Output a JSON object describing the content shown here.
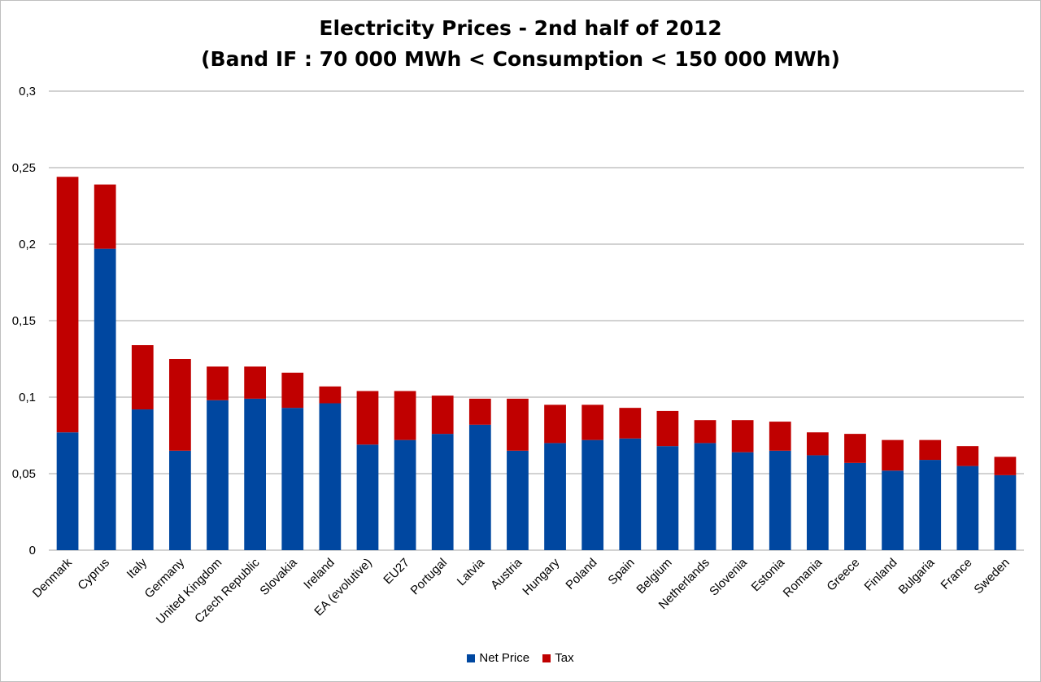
{
  "chart_data": {
    "type": "bar",
    "stacked": true,
    "title_line1": "Electricity Prices - 2nd half of 2012",
    "title_line2": "(Band IF : 70 000 MWh < Consumption < 150 000 MWh)",
    "ylim": [
      0,
      0.3
    ],
    "yticks": [
      "0",
      "0,05",
      "0,1",
      "0,15",
      "0,2",
      "0,25",
      "0,3"
    ],
    "ytick_values": [
      0,
      0.05,
      0.1,
      0.15,
      0.2,
      0.25,
      0.3
    ],
    "grid": true,
    "legend_position": "bottom",
    "categories": [
      "Denmark",
      "Cyprus",
      "Italy",
      "Germany",
      "United Kingdom",
      "Czech Republic",
      "Slovakia",
      "Ireland",
      "EA (evolutive)",
      "EU27",
      "Portugal",
      "Latvia",
      "Austria",
      "Hungary",
      "Poland",
      "Spain",
      "Belgium",
      "Netherlands",
      "Slovenia",
      "Estonia",
      "Romania",
      "Greece",
      "Finland",
      "Bulgaria",
      "France",
      "Sweden"
    ],
    "series": [
      {
        "name": "Net Price",
        "color": "#0047a0",
        "values": [
          0.077,
          0.197,
          0.092,
          0.065,
          0.098,
          0.099,
          0.093,
          0.096,
          0.069,
          0.072,
          0.076,
          0.082,
          0.065,
          0.07,
          0.072,
          0.073,
          0.068,
          0.07,
          0.064,
          0.065,
          0.062,
          0.057,
          0.052,
          0.059,
          0.055,
          0.049
        ]
      },
      {
        "name": "Tax",
        "color": "#c00000",
        "values": [
          0.167,
          0.042,
          0.042,
          0.06,
          0.022,
          0.021,
          0.023,
          0.011,
          0.035,
          0.032,
          0.025,
          0.017,
          0.034,
          0.025,
          0.023,
          0.02,
          0.023,
          0.015,
          0.021,
          0.019,
          0.015,
          0.019,
          0.02,
          0.013,
          0.013,
          0.012
        ]
      }
    ]
  }
}
